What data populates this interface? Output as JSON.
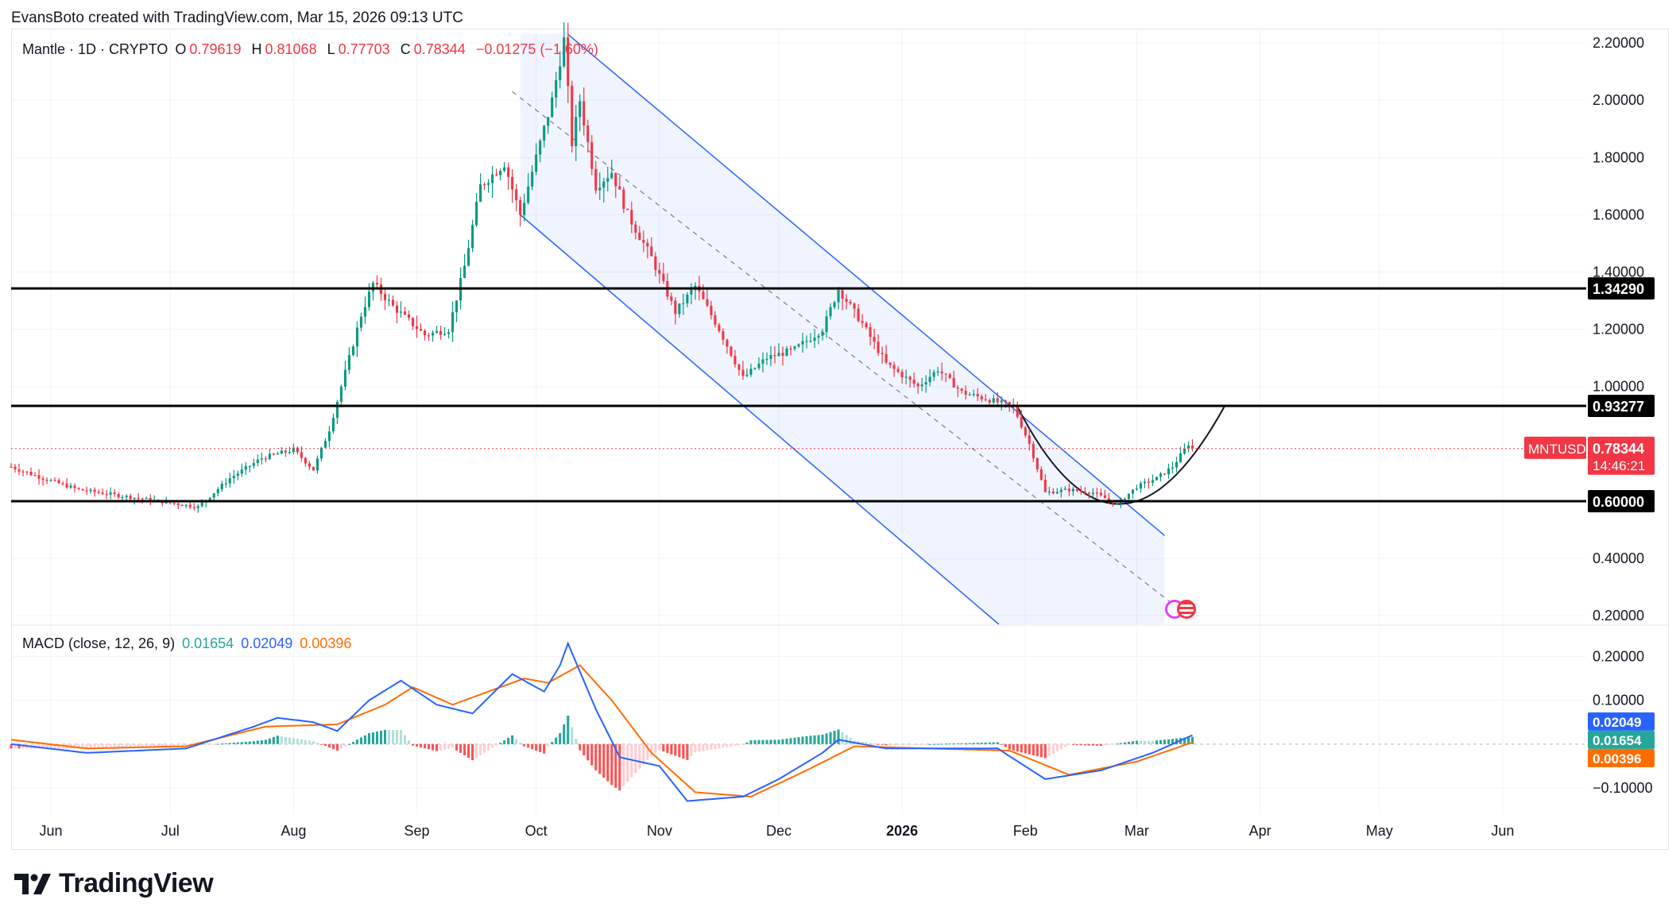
{
  "credit": "EvansBoto created with TradingView.com, Mar 15, 2026 09:13 UTC",
  "legend": {
    "symbol": "Mantle · 1D · CRYPTO",
    "o_label": "O",
    "o": "0.79619",
    "h_label": "H",
    "h": "0.81068",
    "l_label": "L",
    "l": "0.77703",
    "c_label": "C",
    "c": "0.78344",
    "change": "−0.01275 (−1.60%)"
  },
  "macd_legend": {
    "title": "MACD (close, 12, 26, 9)",
    "hist": "0.01654",
    "macd": "0.02049",
    "signal": "0.00396"
  },
  "logo_text": "TradingView",
  "colors": {
    "up": "#089981",
    "down": "#f23645",
    "channel": "#2962ff",
    "macd_line": "#2962ff",
    "signal_line": "#ff6d00",
    "hist_up": "#26a69a",
    "hist_down": "#ff5252",
    "price_tag": "#f23645",
    "level": "#000000"
  },
  "chart_data": [
    {
      "type": "candlestick",
      "title": "Mantle · 1D · CRYPTO",
      "symbol": "MNTUSD",
      "y_range": [
        0.17,
        2.25
      ],
      "price_ticks": [
        "2.20000",
        "2.00000",
        "1.80000",
        "1.60000",
        "1.40000",
        "1.20000",
        "1.00000",
        "0.40000",
        "0.20000"
      ],
      "x_range": [
        "2025-05-22",
        "2026-06-22"
      ],
      "time_ticks": [
        {
          "label": "Jun",
          "date": "2025-06-01"
        },
        {
          "label": "Jul",
          "date": "2025-07-01"
        },
        {
          "label": "Aug",
          "date": "2025-08-01"
        },
        {
          "label": "Sep",
          "date": "2025-09-01"
        },
        {
          "label": "Oct",
          "date": "2025-10-01"
        },
        {
          "label": "Nov",
          "date": "2025-11-01"
        },
        {
          "label": "Dec",
          "date": "2025-12-01"
        },
        {
          "label": "2026",
          "date": "2026-01-01"
        },
        {
          "label": "Feb",
          "date": "2026-02-01"
        },
        {
          "label": "Mar",
          "date": "2026-03-01"
        },
        {
          "label": "Apr",
          "date": "2026-04-01"
        },
        {
          "label": "May",
          "date": "2026-05-01"
        },
        {
          "label": "Jun",
          "date": "2026-06-01"
        }
      ],
      "close_path": [
        [
          "2025-05-22",
          0.72
        ],
        [
          "2025-05-30",
          0.68
        ],
        [
          "2025-06-08",
          0.64
        ],
        [
          "2025-06-18",
          0.62
        ],
        [
          "2025-06-28",
          0.6
        ],
        [
          "2025-07-08",
          0.58
        ],
        [
          "2025-07-16",
          0.68
        ],
        [
          "2025-07-24",
          0.75
        ],
        [
          "2025-08-01",
          0.78
        ],
        [
          "2025-08-06",
          0.71
        ],
        [
          "2025-08-10",
          0.85
        ],
        [
          "2025-08-14",
          1.05
        ],
        [
          "2025-08-18",
          1.25
        ],
        [
          "2025-08-21",
          1.36
        ],
        [
          "2025-08-26",
          1.28
        ],
        [
          "2025-09-03",
          1.18
        ],
        [
          "2025-09-09",
          1.2
        ],
        [
          "2025-09-13",
          1.42
        ],
        [
          "2025-09-17",
          1.7
        ],
        [
          "2025-09-23",
          1.78
        ],
        [
          "2025-09-27",
          1.6
        ],
        [
          "2025-10-01",
          1.8
        ],
        [
          "2025-10-05",
          2.0
        ],
        [
          "2025-10-08",
          2.21
        ],
        [
          "2025-10-10",
          1.85
        ],
        [
          "2025-10-12",
          2.0
        ],
        [
          "2025-10-16",
          1.7
        ],
        [
          "2025-10-20",
          1.75
        ],
        [
          "2025-10-24",
          1.6
        ],
        [
          "2025-10-30",
          1.45
        ],
        [
          "2025-11-05",
          1.26
        ],
        [
          "2025-11-10",
          1.35
        ],
        [
          "2025-11-16",
          1.2
        ],
        [
          "2025-11-22",
          1.03
        ],
        [
          "2025-11-28",
          1.1
        ],
        [
          "2025-12-05",
          1.13
        ],
        [
          "2025-12-12",
          1.2
        ],
        [
          "2025-12-16",
          1.34
        ],
        [
          "2025-12-22",
          1.22
        ],
        [
          "2025-12-28",
          1.08
        ],
        [
          "2026-01-05",
          1.0
        ],
        [
          "2026-01-10",
          1.06
        ],
        [
          "2026-01-16",
          0.98
        ],
        [
          "2026-01-24",
          0.95
        ],
        [
          "2026-01-29",
          0.93
        ],
        [
          "2026-02-02",
          0.8
        ],
        [
          "2026-02-06",
          0.63
        ],
        [
          "2026-02-12",
          0.64
        ],
        [
          "2026-02-18",
          0.63
        ],
        [
          "2026-02-24",
          0.59
        ],
        [
          "2026-03-01",
          0.65
        ],
        [
          "2026-03-06",
          0.68
        ],
        [
          "2026-03-10",
          0.72
        ],
        [
          "2026-03-14",
          0.8
        ],
        [
          "2026-03-15",
          0.78344
        ]
      ],
      "horizontal_levels": [
        "1.34290",
        "0.93277",
        "0.60000"
      ],
      "descending_channel": {
        "upper": [
          [
            "2025-10-09",
            2.23
          ],
          [
            "2026-03-08",
            0.48
          ]
        ],
        "lower": [
          [
            "2025-09-27",
            1.6
          ],
          [
            "2026-01-27",
            0.15
          ]
        ],
        "middle": [
          [
            "2025-09-25",
            2.03
          ],
          [
            "2026-03-12",
            0.22
          ]
        ]
      },
      "rounded_bottom_projection": [
        [
          "2026-01-30",
          0.93
        ],
        [
          "2026-02-24",
          0.59
        ],
        [
          "2026-03-23",
          0.93
        ]
      ],
      "last_price": {
        "symbol": "MNTUSD",
        "value": "0.78344",
        "countdown": "14:46:21"
      }
    },
    {
      "type": "macd",
      "title": "MACD (close, 12, 26, 9)",
      "y_range": [
        -0.16,
        0.27
      ],
      "ticks": [
        "0.20000",
        "0.10000",
        "−0.10000"
      ],
      "values": {
        "histogram": "0.01654",
        "macd": "0.02049",
        "signal": "0.00396"
      },
      "macd_path": [
        [
          "2025-05-22",
          0.0
        ],
        [
          "2025-06-10",
          -0.02
        ],
        [
          "2025-07-05",
          -0.01
        ],
        [
          "2025-07-22",
          0.04
        ],
        [
          "2025-07-28",
          0.06
        ],
        [
          "2025-08-06",
          0.05
        ],
        [
          "2025-08-12",
          0.03
        ],
        [
          "2025-08-20",
          0.1
        ],
        [
          "2025-08-28",
          0.145
        ],
        [
          "2025-09-06",
          0.09
        ],
        [
          "2025-09-15",
          0.07
        ],
        [
          "2025-09-25",
          0.16
        ],
        [
          "2025-10-03",
          0.12
        ],
        [
          "2025-10-07",
          0.18
        ],
        [
          "2025-10-09",
          0.23
        ],
        [
          "2025-10-16",
          0.08
        ],
        [
          "2025-10-22",
          -0.03
        ],
        [
          "2025-11-01",
          -0.05
        ],
        [
          "2025-11-08",
          -0.13
        ],
        [
          "2025-11-22",
          -0.12
        ],
        [
          "2025-12-01",
          -0.08
        ],
        [
          "2025-12-12",
          -0.02
        ],
        [
          "2025-12-16",
          0.01
        ],
        [
          "2025-12-28",
          -0.01
        ],
        [
          "2026-01-10",
          -0.01
        ],
        [
          "2026-01-25",
          -0.01
        ],
        [
          "2026-02-06",
          -0.08
        ],
        [
          "2026-02-20",
          -0.06
        ],
        [
          "2026-03-05",
          -0.02
        ],
        [
          "2026-03-15",
          0.02049
        ]
      ],
      "signal_path": [
        [
          "2025-05-22",
          0.01
        ],
        [
          "2025-06-10",
          -0.01
        ],
        [
          "2025-07-05",
          -0.005
        ],
        [
          "2025-07-25",
          0.04
        ],
        [
          "2025-08-12",
          0.045
        ],
        [
          "2025-08-24",
          0.09
        ],
        [
          "2025-08-31",
          0.13
        ],
        [
          "2025-09-10",
          0.09
        ],
        [
          "2025-09-28",
          0.15
        ],
        [
          "2025-10-04",
          0.14
        ],
        [
          "2025-10-12",
          0.18
        ],
        [
          "2025-10-20",
          0.1
        ],
        [
          "2025-10-30",
          -0.02
        ],
        [
          "2025-11-10",
          -0.11
        ],
        [
          "2025-11-24",
          -0.12
        ],
        [
          "2025-12-08",
          -0.06
        ],
        [
          "2025-12-20",
          -0.005
        ],
        [
          "2026-01-08",
          -0.01
        ],
        [
          "2026-01-28",
          -0.015
        ],
        [
          "2026-02-12",
          -0.07
        ],
        [
          "2026-03-01",
          -0.04
        ],
        [
          "2026-03-15",
          0.00396
        ]
      ]
    }
  ]
}
